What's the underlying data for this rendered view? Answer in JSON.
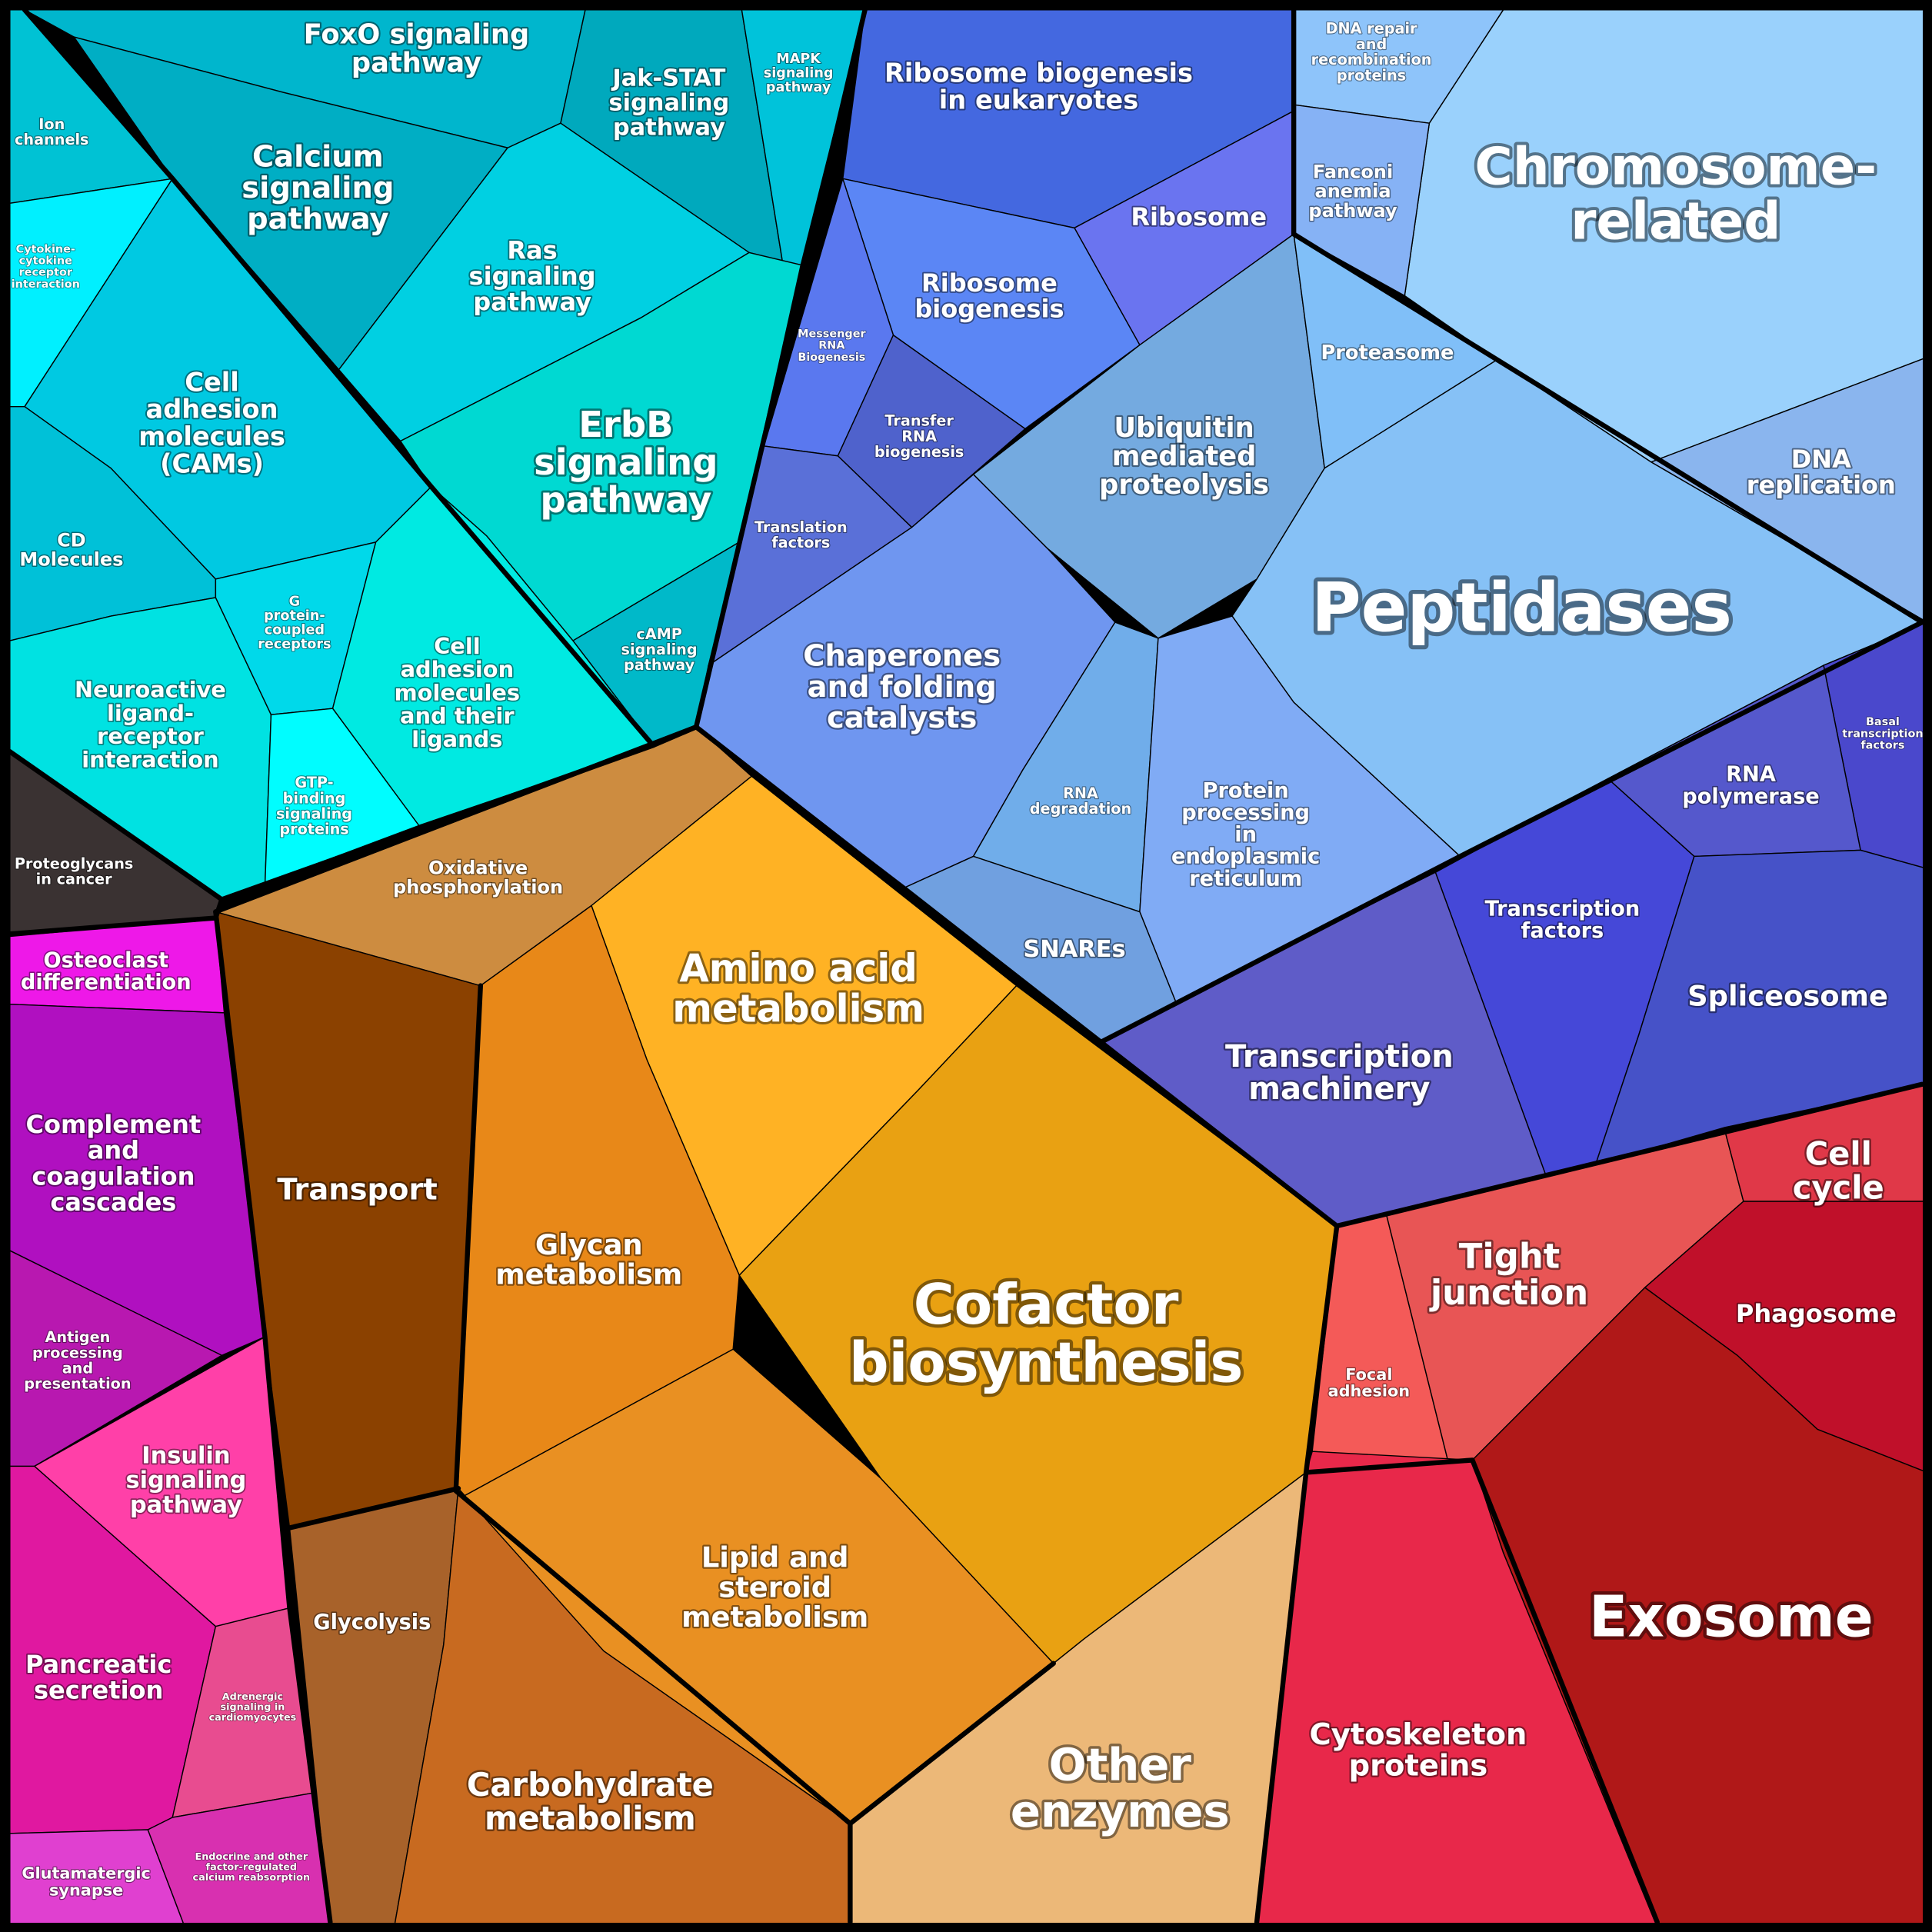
{
  "regions": [
    {
      "lines": [
        "Ion",
        "channels"
      ]
    },
    {
      "lines": [
        "FoxO signaling",
        "pathway"
      ]
    },
    {
      "lines": [
        "Calcium",
        "signaling",
        "pathway"
      ]
    },
    {
      "lines": [
        "Jak-STAT",
        "signaling",
        "pathway"
      ]
    },
    {
      "lines": [
        "MAPK",
        "signaling",
        "pathway"
      ]
    },
    {
      "lines": [
        "Ras",
        "signaling",
        "pathway"
      ]
    },
    {
      "lines": [
        "ErbB",
        "signaling",
        "pathway"
      ]
    },
    {
      "lines": [
        "cAMP",
        "signaling",
        "pathway"
      ]
    },
    {
      "lines": [
        "Cytokine-",
        "cytokine",
        "receptor",
        "interaction"
      ]
    },
    {
      "lines": [
        "Cell",
        "adhesion",
        "molecules",
        "(CAMs)"
      ]
    },
    {
      "lines": [
        "CD",
        "Molecules"
      ]
    },
    {
      "lines": [
        "Neuroactive",
        "ligand-",
        "receptor",
        "interaction"
      ]
    },
    {
      "lines": [
        "G",
        "protein-",
        "coupled",
        "receptors"
      ]
    },
    {
      "lines": [
        "Cell",
        "adhesion",
        "molecules",
        "and their",
        "ligands"
      ]
    },
    {
      "lines": [
        "GTP-",
        "binding",
        "signaling",
        "proteins"
      ]
    },
    {
      "lines": [
        "Proteoglycans",
        "in cancer"
      ]
    },
    {
      "lines": [
        "Ribosome biogenesis",
        "in eukaryotes"
      ]
    },
    {
      "lines": [
        "Ribosome"
      ]
    },
    {
      "lines": [
        "Ribosome",
        "biogenesis"
      ]
    },
    {
      "lines": [
        "Messenger",
        "RNA",
        "Biogenesis"
      ]
    },
    {
      "lines": [
        "Transfer",
        "RNA",
        "biogenesis"
      ]
    },
    {
      "lines": [
        "Translation",
        "factors"
      ]
    },
    {
      "lines": [
        "Chaperones",
        "and folding",
        "catalysts"
      ]
    },
    {
      "lines": [
        "Ubiquitin",
        "mediated",
        "proteolysis"
      ]
    },
    {
      "lines": [
        "Proteasome"
      ]
    },
    {
      "lines": [
        "Chromosome-",
        "related"
      ]
    },
    {
      "lines": [
        "DNA repair",
        "and",
        "recombination",
        "proteins"
      ]
    },
    {
      "lines": [
        "Fanconi",
        "anemia",
        "pathway"
      ]
    },
    {
      "lines": [
        "DNA",
        "replication"
      ]
    },
    {
      "lines": [
        "Peptidases"
      ]
    },
    {
      "lines": [
        "RNA",
        "degradation"
      ]
    },
    {
      "lines": [
        "Protein",
        "processing",
        "in",
        "endoplasmic",
        "reticulum"
      ]
    },
    {
      "lines": [
        "SNAREs"
      ]
    },
    {
      "lines": [
        "Basal",
        "transcription",
        "factors"
      ]
    },
    {
      "lines": [
        "RNA",
        "polymerase"
      ]
    },
    {
      "lines": [
        "Transcription",
        "factors"
      ]
    },
    {
      "lines": [
        "Spliceosome"
      ]
    },
    {
      "lines": [
        "Transcription",
        "machinery"
      ]
    },
    {
      "lines": [
        "Oxidative",
        "phosphorylation"
      ]
    },
    {
      "lines": [
        "Transport"
      ]
    },
    {
      "lines": [
        "Amino acid",
        "metabolism"
      ]
    },
    {
      "lines": [
        "Glycan",
        "metabolism"
      ]
    },
    {
      "lines": [
        "Cofactor",
        "biosynthesis"
      ]
    },
    {
      "lines": [
        "Lipid and",
        "steroid",
        "metabolism"
      ]
    },
    {
      "lines": [
        "Glycolysis"
      ]
    },
    {
      "lines": [
        "Carbohydrate",
        "metabolism"
      ]
    },
    {
      "lines": [
        "Other",
        "enzymes"
      ]
    },
    {
      "lines": [
        "Focal",
        "adhesion"
      ]
    },
    {
      "lines": [
        "Tight",
        "junction"
      ]
    },
    {
      "lines": [
        "Cell",
        "cycle"
      ]
    },
    {
      "lines": [
        "Phagosome"
      ]
    },
    {
      "lines": [
        "Exosome"
      ]
    },
    {
      "lines": [
        "Cytoskeleton",
        "proteins"
      ]
    },
    {
      "lines": [
        "Osteoclast",
        "differentiation"
      ]
    },
    {
      "lines": [
        "Complement",
        "and",
        "coagulation",
        "cascades"
      ]
    },
    {
      "lines": [
        "Antigen",
        "processing",
        "and",
        "presentation"
      ]
    },
    {
      "lines": [
        "Insulin",
        "signaling",
        "pathway"
      ]
    },
    {
      "lines": [
        "Pancreatic",
        "secretion"
      ]
    },
    {
      "lines": [
        "Adrenergic",
        "signaling in",
        "cardiomyocytes"
      ]
    },
    {
      "lines": [
        "Glutamatergic",
        "synapse"
      ]
    },
    {
      "lines": [
        "Endocrine and other",
        "factor-regulated",
        "calcium reabsorption"
      ]
    }
  ]
}
